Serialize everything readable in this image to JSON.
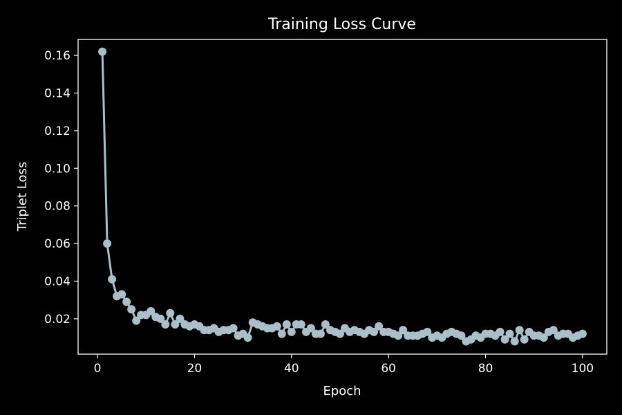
{
  "chart_data": {
    "type": "line",
    "title": "Training Loss Curve",
    "xlabel": "Epoch",
    "ylabel": "Triplet Loss",
    "xlim": [
      -4,
      105
    ],
    "ylim": [
      0.0012,
      0.1685
    ],
    "xticks": [
      0,
      20,
      40,
      60,
      80,
      100
    ],
    "yticks": [
      0.02,
      0.04,
      0.06,
      0.08,
      0.1,
      0.12,
      0.14,
      0.16
    ],
    "xtick_labels": [
      "0",
      "20",
      "40",
      "60",
      "80",
      "100"
    ],
    "ytick_labels": [
      "0.02",
      "0.04",
      "0.06",
      "0.08",
      "0.10",
      "0.12",
      "0.14",
      "0.16"
    ],
    "grid": false,
    "legend": "none",
    "colors": {
      "background": "#000000",
      "axes": "#ffffff",
      "series": "#a9c0c9"
    },
    "series": [
      {
        "x": [
          1,
          2,
          3,
          4,
          5,
          6,
          7,
          8,
          9,
          10,
          11,
          12,
          13,
          14,
          15,
          16,
          17,
          18,
          19,
          20,
          21,
          22,
          23,
          24,
          25,
          26,
          27,
          28,
          29,
          30,
          31,
          32,
          33,
          34,
          35,
          36,
          37,
          38,
          39,
          40,
          41,
          42,
          43,
          44,
          45,
          46,
          47,
          48,
          49,
          50,
          51,
          52,
          53,
          54,
          55,
          56,
          57,
          58,
          59,
          60,
          61,
          62,
          63,
          64,
          65,
          66,
          67,
          68,
          69,
          70,
          71,
          72,
          73,
          74,
          75,
          76,
          77,
          78,
          79,
          80,
          81,
          82,
          83,
          84,
          85,
          86,
          87,
          88,
          89,
          90,
          91,
          92,
          93,
          94,
          95,
          96,
          97,
          98,
          99,
          100
        ],
        "y": [
          0.162,
          0.06,
          0.041,
          0.032,
          0.033,
          0.029,
          0.025,
          0.019,
          0.022,
          0.022,
          0.024,
          0.021,
          0.02,
          0.017,
          0.023,
          0.017,
          0.02,
          0.017,
          0.016,
          0.017,
          0.016,
          0.014,
          0.014,
          0.015,
          0.013,
          0.014,
          0.014,
          0.015,
          0.011,
          0.012,
          0.01,
          0.018,
          0.017,
          0.016,
          0.015,
          0.015,
          0.016,
          0.012,
          0.017,
          0.013,
          0.017,
          0.017,
          0.013,
          0.015,
          0.012,
          0.012,
          0.017,
          0.014,
          0.013,
          0.012,
          0.015,
          0.013,
          0.014,
          0.013,
          0.012,
          0.014,
          0.013,
          0.016,
          0.013,
          0.013,
          0.012,
          0.011,
          0.014,
          0.011,
          0.011,
          0.011,
          0.012,
          0.013,
          0.01,
          0.011,
          0.01,
          0.012,
          0.013,
          0.012,
          0.011,
          0.008,
          0.009,
          0.011,
          0.01,
          0.012,
          0.012,
          0.011,
          0.013,
          0.009,
          0.012,
          0.008,
          0.014,
          0.009,
          0.013,
          0.011,
          0.011,
          0.01,
          0.013,
          0.014,
          0.011,
          0.012,
          0.012,
          0.01,
          0.011,
          0.012
        ]
      }
    ]
  }
}
